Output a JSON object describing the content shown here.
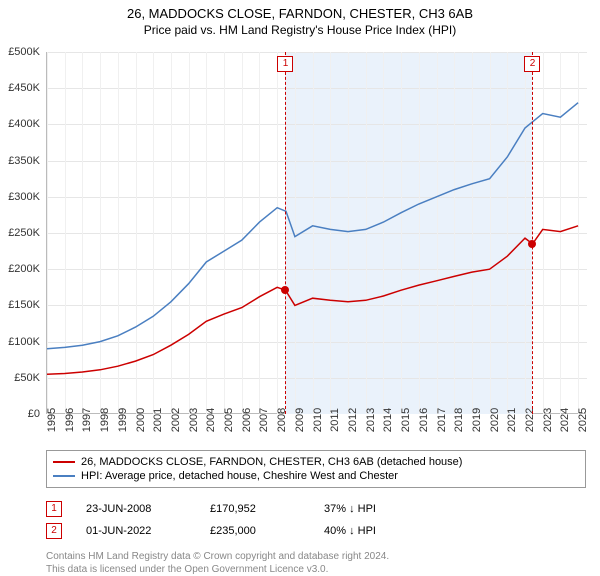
{
  "title": {
    "main": "26, MADDOCKS CLOSE, FARNDON, CHESTER, CH3 6AB",
    "sub": "Price paid vs. HM Land Registry's House Price Index (HPI)",
    "fontsize_main": 13,
    "fontsize_sub": 12,
    "color": "#000000"
  },
  "chart": {
    "type": "line",
    "background_color": "#ffffff",
    "grid_color": "#e6e6e6",
    "axis_color": "#bbbbbb",
    "shade_color": "#eaf2fb",
    "shade_ranges": [
      [
        2008.47,
        2022.42
      ]
    ],
    "x": {
      "min": 1995,
      "max": 2025.5,
      "ticks": [
        1995,
        1996,
        1997,
        1998,
        1999,
        2000,
        2001,
        2002,
        2003,
        2004,
        2005,
        2006,
        2007,
        2008,
        2009,
        2010,
        2011,
        2012,
        2013,
        2014,
        2015,
        2016,
        2017,
        2018,
        2019,
        2020,
        2021,
        2022,
        2023,
        2024,
        2025
      ],
      "label_fontsize": 11,
      "label_rotation": -90
    },
    "y": {
      "min": 0,
      "max": 500000,
      "ticks": [
        0,
        50000,
        100000,
        150000,
        200000,
        250000,
        300000,
        350000,
        400000,
        450000,
        500000
      ],
      "tick_labels": [
        "£0",
        "£50K",
        "£100K",
        "£150K",
        "£200K",
        "£250K",
        "£300K",
        "£350K",
        "£400K",
        "£450K",
        "£500K"
      ],
      "label_fontsize": 11
    },
    "series": [
      {
        "name": "hpi",
        "label": "HPI: Average price, detached house, Cheshire West and Chester",
        "color": "#4a7fc1",
        "line_width": 1.5,
        "points": [
          [
            1995,
            90000
          ],
          [
            1996,
            92000
          ],
          [
            1997,
            95000
          ],
          [
            1998,
            100000
          ],
          [
            1999,
            108000
          ],
          [
            2000,
            120000
          ],
          [
            2001,
            135000
          ],
          [
            2002,
            155000
          ],
          [
            2003,
            180000
          ],
          [
            2004,
            210000
          ],
          [
            2005,
            225000
          ],
          [
            2006,
            240000
          ],
          [
            2007,
            265000
          ],
          [
            2008,
            285000
          ],
          [
            2008.5,
            280000
          ],
          [
            2009,
            245000
          ],
          [
            2010,
            260000
          ],
          [
            2011,
            255000
          ],
          [
            2012,
            252000
          ],
          [
            2013,
            255000
          ],
          [
            2014,
            265000
          ],
          [
            2015,
            278000
          ],
          [
            2016,
            290000
          ],
          [
            2017,
            300000
          ],
          [
            2018,
            310000
          ],
          [
            2019,
            318000
          ],
          [
            2020,
            325000
          ],
          [
            2021,
            355000
          ],
          [
            2022,
            395000
          ],
          [
            2023,
            415000
          ],
          [
            2024,
            410000
          ],
          [
            2025,
            430000
          ]
        ]
      },
      {
        "name": "property",
        "label": "26, MADDOCKS CLOSE, FARNDON, CHESTER, CH3 6AB (detached house)",
        "color": "#cc0000",
        "line_width": 1.5,
        "points": [
          [
            1995,
            55000
          ],
          [
            1996,
            56000
          ],
          [
            1997,
            58000
          ],
          [
            1998,
            61000
          ],
          [
            1999,
            66000
          ],
          [
            2000,
            73000
          ],
          [
            2001,
            82000
          ],
          [
            2002,
            95000
          ],
          [
            2003,
            110000
          ],
          [
            2004,
            128000
          ],
          [
            2005,
            138000
          ],
          [
            2006,
            147000
          ],
          [
            2007,
            162000
          ],
          [
            2008,
            175000
          ],
          [
            2008.47,
            170952
          ],
          [
            2009,
            150000
          ],
          [
            2010,
            160000
          ],
          [
            2011,
            157000
          ],
          [
            2012,
            155000
          ],
          [
            2013,
            157000
          ],
          [
            2014,
            163000
          ],
          [
            2015,
            171000
          ],
          [
            2016,
            178000
          ],
          [
            2017,
            184000
          ],
          [
            2018,
            190000
          ],
          [
            2019,
            196000
          ],
          [
            2020,
            200000
          ],
          [
            2021,
            218000
          ],
          [
            2022,
            243000
          ],
          [
            2022.42,
            235000
          ],
          [
            2023,
            255000
          ],
          [
            2024,
            252000
          ],
          [
            2025,
            260000
          ]
        ]
      }
    ],
    "sales": [
      {
        "index": "1",
        "date_x": 2008.47,
        "date_label": "23-JUN-2008",
        "price": 170952,
        "price_label": "£170,952",
        "diff_label": "37% ↓ HPI"
      },
      {
        "index": "2",
        "date_x": 2022.42,
        "date_label": "01-JUN-2022",
        "price": 235000,
        "price_label": "£235,000",
        "diff_label": "40% ↓ HPI"
      }
    ],
    "sale_marker": {
      "border_color": "#cc0000",
      "dash": "4,3",
      "dot_color": "#cc0000",
      "badge_fontsize": 10
    }
  },
  "legend": {
    "border_color": "#999999",
    "fontsize": 11
  },
  "footnote": {
    "line1": "Contains HM Land Registry data © Crown copyright and database right 2024.",
    "line2": "This data is licensed under the Open Government Licence v3.0.",
    "color": "#888888",
    "fontsize": 10
  }
}
